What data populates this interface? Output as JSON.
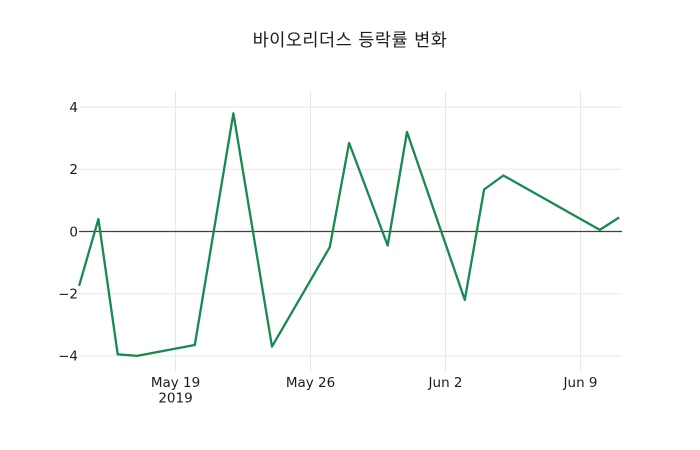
{
  "title": "바이오리더스 등락률 변화",
  "colors": {
    "background": "#ffffff",
    "line": "#178a50",
    "zero_line": "#404040",
    "grid": "#e8e8e8",
    "text": "#1c1c1c"
  },
  "chart_data": {
    "type": "line",
    "title": "바이오리더스 등락률 변화",
    "xlabel": "",
    "ylabel": "",
    "ylim": [
      -4.5,
      4.5
    ],
    "grid": true,
    "legend": false,
    "markers": false,
    "x_axis": {
      "ticks": [
        {
          "label": "May 19",
          "sub": "2019",
          "date": "2019-05-19"
        },
        {
          "label": "May 26",
          "sub": "",
          "date": "2019-05-26"
        },
        {
          "label": "Jun 2",
          "sub": "",
          "date": "2019-06-02"
        },
        {
          "label": "Jun 9",
          "sub": "",
          "date": "2019-06-09"
        }
      ]
    },
    "y_axis": {
      "ticks": [
        {
          "label": "4",
          "value": 4
        },
        {
          "label": "2",
          "value": 2
        },
        {
          "label": "0",
          "value": 0
        },
        {
          "label": "−2",
          "value": -2
        },
        {
          "label": "−4",
          "value": -4
        }
      ]
    },
    "points": [
      {
        "date": "2019-05-14",
        "value": -1.75
      },
      {
        "date": "2019-05-15",
        "value": 0.4
      },
      {
        "date": "2019-05-16",
        "value": -3.95
      },
      {
        "date": "2019-05-17",
        "value": -4.0
      },
      {
        "date": "2019-05-20",
        "value": -3.65
      },
      {
        "date": "2019-05-22",
        "value": 3.8
      },
      {
        "date": "2019-05-24",
        "value": -3.7
      },
      {
        "date": "2019-05-27",
        "value": -0.5
      },
      {
        "date": "2019-05-28",
        "value": 2.85
      },
      {
        "date": "2019-05-30",
        "value": -0.45
      },
      {
        "date": "2019-05-31",
        "value": 3.2
      },
      {
        "date": "2019-06-03",
        "value": -2.2
      },
      {
        "date": "2019-06-04",
        "value": 1.35
      },
      {
        "date": "2019-06-05",
        "value": 1.8
      },
      {
        "date": "2019-06-10",
        "value": 0.05
      },
      {
        "date": "2019-06-11",
        "value": 0.45
      }
    ]
  }
}
